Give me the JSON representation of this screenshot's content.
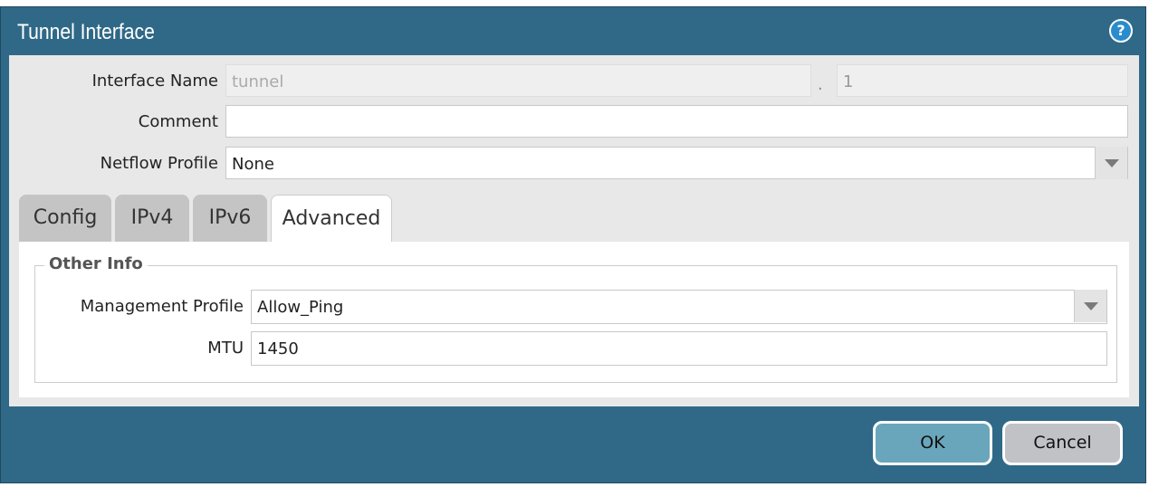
{
  "dialog": {
    "title": "Tunnel Interface",
    "help_icon": "help-icon"
  },
  "form": {
    "interface_name_label": "Interface Name",
    "interface_name_value": "tunnel",
    "separator": ".",
    "interface_suffix": "1",
    "comment_label": "Comment",
    "comment_value": "",
    "netflow_label": "Netflow Profile",
    "netflow_value": "None"
  },
  "tabs": [
    {
      "label": "Config"
    },
    {
      "label": "IPv4"
    },
    {
      "label": "IPv6"
    },
    {
      "label": "Advanced",
      "active": true
    }
  ],
  "advanced": {
    "section": "Other Info",
    "mgmt_label": "Management Profile",
    "mgmt_value": "Allow_Ping",
    "mtu_label": "MTU",
    "mtu_value": "1450"
  },
  "buttons": {
    "ok": "OK",
    "cancel": "Cancel"
  },
  "colors": {
    "frame": "#306987",
    "ok": "#6aa6bb",
    "cancel": "#c0c2c6"
  }
}
